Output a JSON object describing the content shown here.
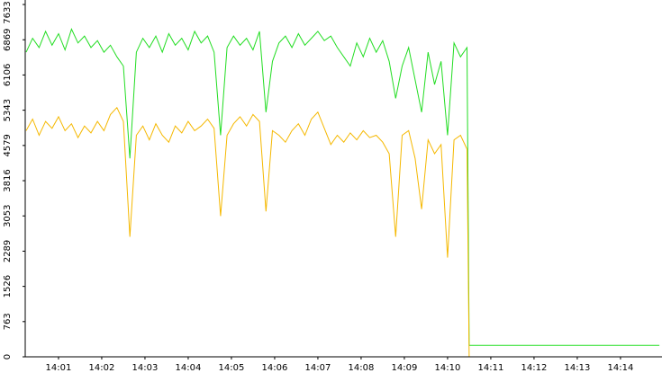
{
  "chart_data": {
    "type": "line",
    "x": [
      0.25,
      0.4,
      0.55,
      0.7,
      0.85,
      1.0,
      1.15,
      1.3,
      1.45,
      1.6,
      1.75,
      1.9,
      2.05,
      2.2,
      2.35,
      2.5,
      2.65,
      2.8,
      2.95,
      3.1,
      3.25,
      3.4,
      3.55,
      3.7,
      3.85,
      4.0,
      4.15,
      4.3,
      4.45,
      4.6,
      4.75,
      4.9,
      5.05,
      5.2,
      5.35,
      5.5,
      5.65,
      5.8,
      5.95,
      6.1,
      6.25,
      6.4,
      6.55,
      6.7,
      6.85,
      7.0,
      7.15,
      7.3,
      7.45,
      7.6,
      7.75,
      7.9,
      8.05,
      8.2,
      8.35,
      8.5,
      8.65,
      8.8,
      8.95,
      9.1,
      9.25,
      9.4,
      9.55,
      9.7,
      9.85,
      10.0,
      10.15,
      10.3,
      10.45,
      10.5,
      14.9
    ],
    "series": [
      {
        "color": "#22dd22",
        "values": [
          6600,
          6900,
          6700,
          7050,
          6750,
          7000,
          6650,
          7100,
          6800,
          6950,
          6700,
          6850,
          6600,
          6750,
          6500,
          6300,
          4300,
          6600,
          6900,
          6700,
          6950,
          6600,
          7000,
          6750,
          6900,
          6650,
          7050,
          6800,
          6950,
          6600,
          4800,
          6700,
          6950,
          6750,
          6900,
          6650,
          7050,
          5300,
          6400,
          6800,
          6950,
          6700,
          7000,
          6750,
          6900,
          7050,
          6850,
          6950,
          6700,
          6500,
          6300,
          6800,
          6500,
          6900,
          6600,
          6850,
          6400,
          5600,
          6300,
          6700,
          6000,
          5300,
          6600,
          5900,
          6400,
          4800,
          6800,
          6500,
          6700,
          250,
          250
        ]
      },
      {
        "color": "#f5b800",
        "values": [
          4900,
          5150,
          4800,
          5100,
          4950,
          5200,
          4900,
          5050,
          4750,
          5000,
          4850,
          5100,
          4900,
          5250,
          5400,
          5100,
          2600,
          4800,
          5000,
          4700,
          5050,
          4800,
          4650,
          5000,
          4850,
          5100,
          4900,
          5000,
          5150,
          4950,
          3050,
          4800,
          5050,
          5200,
          5000,
          5250,
          5100,
          3150,
          4900,
          4800,
          4650,
          4900,
          5050,
          4800,
          5150,
          5300,
          4950,
          4600,
          4800,
          4650,
          4850,
          4700,
          4900,
          4750,
          4800,
          4650,
          4400,
          2600,
          4800,
          4900,
          4300,
          3200,
          4700,
          4400,
          4600,
          2150,
          4700,
          4800,
          4500,
          0,
          0
        ]
      }
    ],
    "xlim": [
      0.23,
      14.96
    ],
    "xticks": [
      {
        "value": 1,
        "label": "14:01"
      },
      {
        "value": 2,
        "label": "14:02"
      },
      {
        "value": 3,
        "label": "14:03"
      },
      {
        "value": 4,
        "label": "14:04"
      },
      {
        "value": 5,
        "label": "14:05"
      },
      {
        "value": 6,
        "label": "14:06"
      },
      {
        "value": 7,
        "label": "14:07"
      },
      {
        "value": 8,
        "label": "14:08"
      },
      {
        "value": 9,
        "label": "14:09"
      },
      {
        "value": 10,
        "label": "14:10"
      },
      {
        "value": 11,
        "label": "14:11"
      },
      {
        "value": 12,
        "label": "14:12"
      },
      {
        "value": 13,
        "label": "14:13"
      },
      {
        "value": 14,
        "label": "14:14"
      }
    ],
    "ylim": [
      0,
      7633
    ],
    "yticks": [
      0,
      763,
      1526,
      2289,
      3053,
      3816,
      4579,
      5343,
      6106,
      6869,
      7633
    ]
  }
}
